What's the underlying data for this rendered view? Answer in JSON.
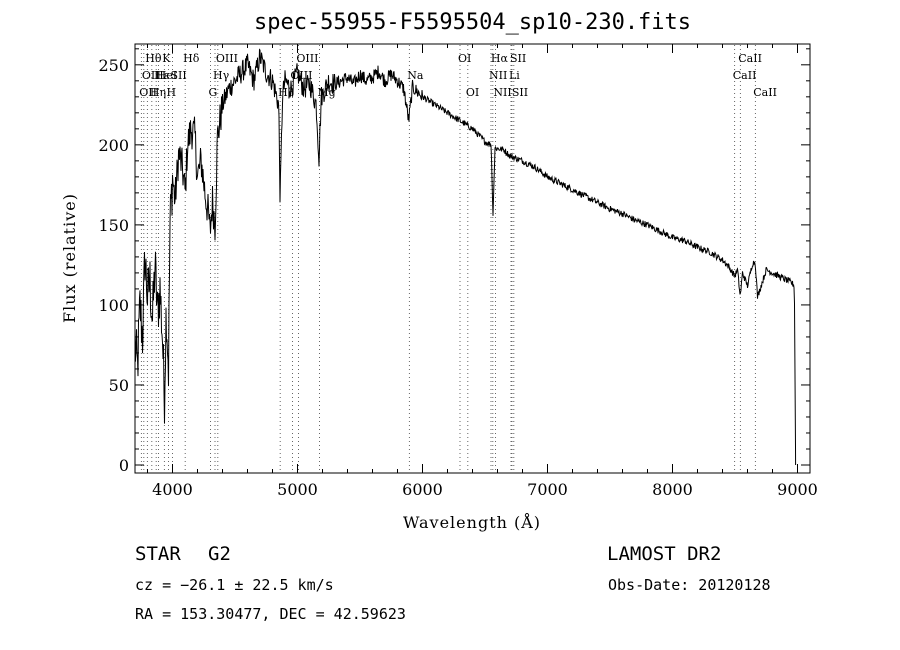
{
  "chart_data": {
    "type": "line",
    "title": "spec-55955-F5595504_sp10-230.fits",
    "xlabel": "Wavelength (Å)",
    "ylabel": "Flux (relative)",
    "xlim": [
      3700,
      9100
    ],
    "ylim": [
      -5,
      263
    ],
    "xticks": [
      4000,
      5000,
      6000,
      7000,
      8000,
      9000
    ],
    "yticks": [
      0,
      50,
      100,
      150,
      200,
      250
    ],
    "grid": false,
    "series": [
      {
        "x": [
          3700,
          3720,
          3740,
          3760,
          3780,
          3800,
          3820,
          3840,
          3860,
          3880,
          3900,
          3920,
          3935,
          3950,
          3968,
          3980,
          4000,
          4020,
          4050,
          4080,
          4101,
          4120,
          4150,
          4180,
          4200,
          4230,
          4260,
          4290,
          4300,
          4320,
          4340,
          4360,
          4380,
          4400,
          4450,
          4500,
          4550,
          4600,
          4650,
          4700,
          4750,
          4800,
          4850,
          4861,
          4880,
          4900,
          4950,
          5000,
          5050,
          5100,
          5150,
          5172,
          5190,
          5250,
          5300,
          5350,
          5400,
          5450,
          5500,
          5550,
          5600,
          5650,
          5700,
          5750,
          5800,
          5850,
          5890,
          5920,
          6000,
          6100,
          6200,
          6300,
          6400,
          6500,
          6550,
          6563,
          6580,
          6650,
          6700,
          6800,
          6900,
          7000,
          7100,
          7200,
          7300,
          7400,
          7500,
          7600,
          7700,
          7800,
          7900,
          8000,
          8100,
          8200,
          8300,
          8400,
          8450,
          8498,
          8520,
          8542,
          8560,
          8600,
          8640,
          8662,
          8680,
          8750,
          8800,
          8850,
          8900,
          8950,
          8975,
          8985
        ],
        "y": [
          75,
          60,
          100,
          80,
          130,
          105,
          115,
          90,
          125,
          95,
          110,
          80,
          40,
          100,
          60,
          150,
          180,
          165,
          195,
          185,
          170,
          200,
          210,
          205,
          180,
          190,
          170,
          155,
          145,
          165,
          150,
          205,
          215,
          225,
          235,
          240,
          245,
          250,
          240,
          255,
          245,
          240,
          225,
          165,
          230,
          240,
          235,
          245,
          235,
          238,
          225,
          192,
          230,
          240,
          238,
          240,
          242,
          238,
          244,
          240,
          242,
          246,
          240,
          244,
          240,
          235,
          215,
          236,
          230,
          225,
          220,
          215,
          210,
          202,
          200,
          155,
          198,
          197,
          193,
          190,
          186,
          180,
          176,
          172,
          168,
          164,
          160,
          157,
          153,
          150,
          146,
          142,
          140,
          136,
          133,
          128,
          124,
          118,
          122,
          105,
          120,
          112,
          126,
          127,
          105,
          122,
          120,
          118,
          116,
          114,
          112,
          0
        ]
      }
    ],
    "line_labels": [
      {
        "wavelength": 3750,
        "row": 2,
        "text": "OII"
      },
      {
        "wavelength": 3771,
        "row": 1,
        "text": "OII"
      },
      {
        "wavelength": 3798,
        "row": 0,
        "text": "Hθ"
      },
      {
        "wavelength": 3835,
        "row": 2,
        "text": "Hη"
      },
      {
        "wavelength": 3869,
        "row": 1,
        "text": "Hε"
      },
      {
        "wavelength": 3889,
        "row": 1,
        "text": "HeI"
      },
      {
        "wavelength": 3934,
        "row": 0,
        "text": "K"
      },
      {
        "wavelength": 3968,
        "row": 2,
        "text": "H"
      },
      {
        "wavelength": 4000,
        "row": 1,
        "text": "SII"
      },
      {
        "wavelength": 4101,
        "row": 0,
        "text": "Hδ"
      },
      {
        "wavelength": 4304,
        "row": 2,
        "text": "G"
      },
      {
        "wavelength": 4340,
        "row": 1,
        "text": "Hγ"
      },
      {
        "wavelength": 4363,
        "row": 0,
        "text": "OIII"
      },
      {
        "wavelength": 4861,
        "row": 2,
        "text": "Hβ"
      },
      {
        "wavelength": 4959,
        "row": 1,
        "text": "OIII"
      },
      {
        "wavelength": 5007,
        "row": 0,
        "text": "OIII"
      },
      {
        "wavelength": 5175,
        "row": 2,
        "text": "Mg"
      },
      {
        "wavelength": 5894,
        "row": 1,
        "text": "Na"
      },
      {
        "wavelength": 6300,
        "row": 0,
        "text": "OI"
      },
      {
        "wavelength": 6363,
        "row": 2,
        "text": "OI"
      },
      {
        "wavelength": 6548,
        "row": 1,
        "text": "NII"
      },
      {
        "wavelength": 6563,
        "row": 0,
        "text": "Hα"
      },
      {
        "wavelength": 6583,
        "row": 2,
        "text": "NII"
      },
      {
        "wavelength": 6708,
        "row": 1,
        "text": "Li"
      },
      {
        "wavelength": 6716,
        "row": 0,
        "text": "SII"
      },
      {
        "wavelength": 6731,
        "row": 2,
        "text": "SII"
      },
      {
        "wavelength": 8498,
        "row": 1,
        "text": "CaII"
      },
      {
        "wavelength": 8542,
        "row": 0,
        "text": "CaII"
      },
      {
        "wavelength": 8662,
        "row": 2,
        "text": "CaII"
      }
    ]
  },
  "info": {
    "object_type": "STAR",
    "subclass": "G2",
    "redshift": "cz = −26.1 ± 22.5 km/s",
    "coords": "RA = 153.30477, DEC =  42.59623",
    "survey": "LAMOST DR2",
    "obs_date": "Obs-Date: 20120128"
  }
}
